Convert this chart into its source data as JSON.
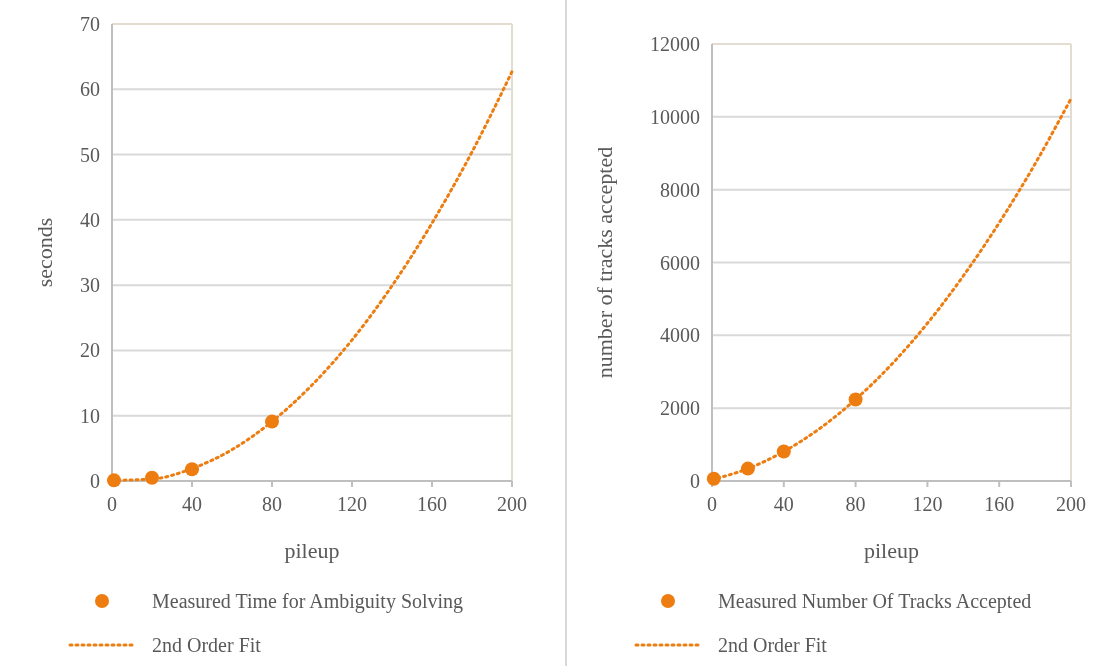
{
  "chart_data": [
    {
      "type": "scatter",
      "xlabel": "pileup",
      "ylabel": "seconds",
      "xlim": [
        0,
        200
      ],
      "xticks": [
        0,
        40,
        80,
        120,
        160,
        200
      ],
      "ylim": [
        0,
        70
      ],
      "yticks": [
        0,
        10,
        20,
        30,
        40,
        50,
        60,
        70
      ],
      "grid": "y",
      "legend": "bottom",
      "series": [
        {
          "name": "Measured Time for Ambiguity Solving",
          "marker": "circle",
          "color": "#ed7d10",
          "x": [
            1,
            20,
            40,
            80
          ],
          "values": [
            0.1,
            0.5,
            1.8,
            9.1
          ]
        },
        {
          "name": "2nd Order Fit",
          "type": "line",
          "line_style": "dotted",
          "marker": "none",
          "color": "#ed7d10",
          "x": [
            0,
            20,
            40,
            60,
            80,
            100,
            120,
            140,
            160,
            180,
            200
          ],
          "values": [
            0.1,
            0.3,
            1.9,
            4.8,
            9.1,
            14.7,
            21.6,
            29.9,
            39.5,
            50.4,
            62.7
          ]
        }
      ]
    },
    {
      "type": "scatter",
      "xlabel": "pileup",
      "ylabel": "number of tracks accepted",
      "xlim": [
        0,
        200
      ],
      "xticks": [
        0,
        40,
        80,
        120,
        160,
        200
      ],
      "ylim": [
        0,
        12000
      ],
      "yticks": [
        0,
        2000,
        4000,
        6000,
        8000,
        10000,
        12000
      ],
      "grid": "y",
      "legend": "bottom",
      "series": [
        {
          "name": "Measured Number Of Tracks Accepted",
          "marker": "circle",
          "color": "#ed7d10",
          "x": [
            1,
            20,
            40,
            80
          ],
          "values": [
            60,
            340,
            810,
            2240
          ]
        },
        {
          "name": "2nd Order Fit",
          "type": "line",
          "line_style": "dotted",
          "marker": "none",
          "color": "#ed7d10",
          "x": [
            0,
            20,
            40,
            60,
            80,
            100,
            120,
            140,
            160,
            180,
            200
          ],
          "values": [
            40,
            340,
            810,
            1440,
            2240,
            3200,
            4330,
            5630,
            7090,
            8710,
            10500
          ]
        }
      ]
    }
  ]
}
